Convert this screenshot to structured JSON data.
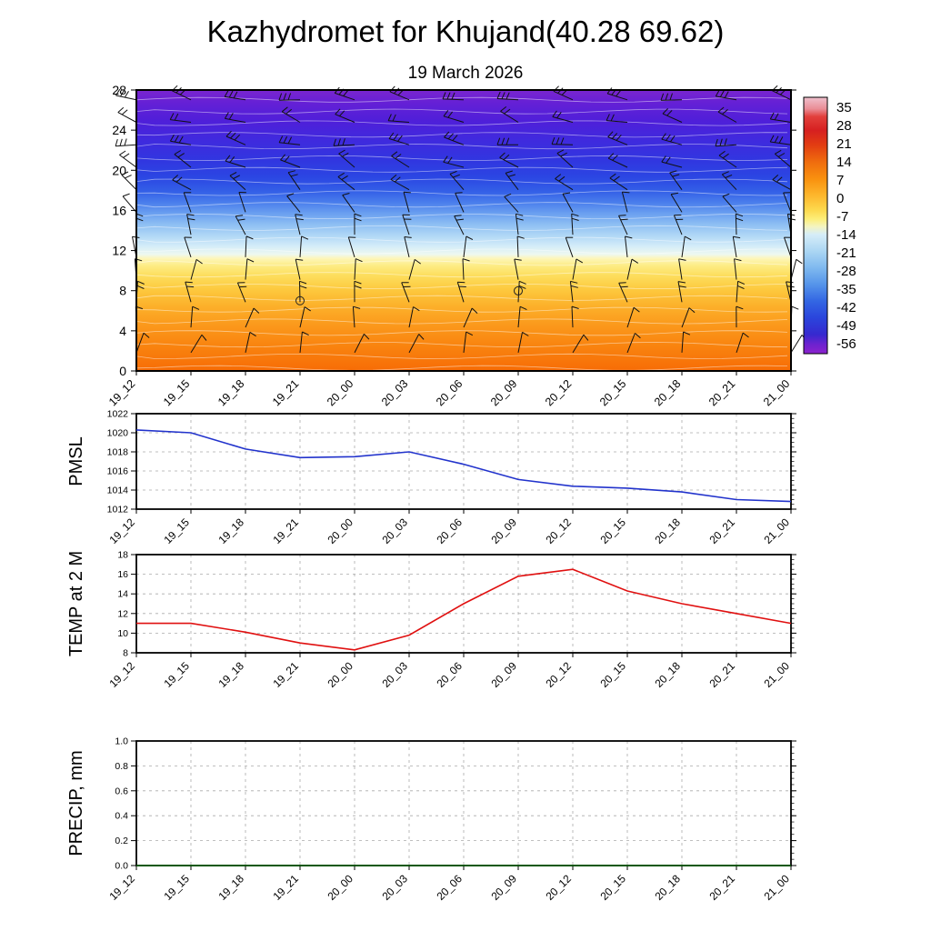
{
  "page": {
    "title": "Kazhydromet for Khujand(40.28 69.62)",
    "subtitle": "19 March 2026"
  },
  "time_labels": [
    "19_12",
    "19_15",
    "19_18",
    "19_21",
    "20_00",
    "20_03",
    "20_06",
    "20_09",
    "20_12",
    "20_15",
    "20_18",
    "20_21",
    "21_00"
  ],
  "chart_data": [
    {
      "id": "cross_section",
      "name": "upper-air time-height cross section",
      "type": "heatmap",
      "x": [
        "19_12",
        "19_15",
        "19_18",
        "19_21",
        "20_00",
        "20_03",
        "20_06",
        "20_09",
        "20_12",
        "20_15",
        "20_18",
        "20_21",
        "21_00"
      ],
      "ylim": [
        0,
        28
      ],
      "yticks": [
        0,
        4,
        8,
        12,
        16,
        20,
        24,
        28
      ],
      "description": "Temperature shading with wind barbs; warm (orange) below ~11, sharp transition to cold (blue/purple) aloft; two calm circles near 8 at 19_21 and 20_09",
      "colorbar": {
        "ticks": [
          35,
          28,
          21,
          14,
          7,
          0,
          -7,
          -14,
          -21,
          -28,
          -35,
          -42,
          -49,
          -56
        ]
      },
      "style": {
        "gradient": [
          [
            0.0,
            "#7a25cf"
          ],
          [
            0.05,
            "#6320d6"
          ],
          [
            0.11,
            "#4f1fd9"
          ],
          [
            0.18,
            "#3f2ade"
          ],
          [
            0.25,
            "#3136e0"
          ],
          [
            0.31,
            "#2b46e3"
          ],
          [
            0.36,
            "#335fe7"
          ],
          [
            0.4,
            "#4a7eec"
          ],
          [
            0.44,
            "#6ba0f0"
          ],
          [
            0.48,
            "#8fc0f3"
          ],
          [
            0.52,
            "#b2d8f6"
          ],
          [
            0.555,
            "#d3ecf9"
          ],
          [
            0.585,
            "#eef8f0"
          ],
          [
            0.6,
            "#fdf6b8"
          ],
          [
            0.625,
            "#fdec85"
          ],
          [
            0.66,
            "#fdde5d"
          ],
          [
            0.71,
            "#fdc93e"
          ],
          [
            0.77,
            "#fcb02a"
          ],
          [
            0.84,
            "#fb981b"
          ],
          [
            0.91,
            "#f9840f"
          ],
          [
            1.0,
            "#f76c06"
          ]
        ],
        "colorbar_gradient": [
          [
            0.0,
            "#efc0cd"
          ],
          [
            0.045,
            "#ea8d96"
          ],
          [
            0.075,
            "#e2403c"
          ],
          [
            0.13,
            "#d62020"
          ],
          [
            0.185,
            "#e23c12"
          ],
          [
            0.25,
            "#ef6b0e"
          ],
          [
            0.32,
            "#f9920f"
          ],
          [
            0.38,
            "#fdb52b"
          ],
          [
            0.44,
            "#fdd94e"
          ],
          [
            0.475,
            "#fdee79"
          ],
          [
            0.505,
            "#f3f4c2"
          ],
          [
            0.535,
            "#d6edf8"
          ],
          [
            0.6,
            "#abd6f3"
          ],
          [
            0.665,
            "#7fb9ef"
          ],
          [
            0.73,
            "#5594ea"
          ],
          [
            0.795,
            "#3366e3"
          ],
          [
            0.86,
            "#2a45dc"
          ],
          [
            0.925,
            "#3629cf"
          ],
          [
            0.965,
            "#6e22cf"
          ],
          [
            1.0,
            "#8d23cd"
          ]
        ],
        "barb_rows": [
          [
            0.035,
            -168,
            3
          ],
          [
            0.115,
            -162,
            2
          ],
          [
            0.195,
            -170,
            3
          ],
          [
            0.275,
            -152,
            2
          ],
          [
            0.355,
            -138,
            2
          ],
          [
            0.435,
            -118,
            1
          ],
          [
            0.515,
            -104,
            2
          ],
          [
            0.595,
            -96,
            1
          ],
          [
            0.675,
            -88,
            1
          ],
          [
            0.755,
            -100,
            2
          ],
          [
            0.845,
            -80,
            1
          ],
          [
            0.935,
            -72,
            1
          ]
        ],
        "calm_markers": [
          [
            3,
            0.75
          ],
          [
            7,
            0.715
          ]
        ]
      }
    },
    {
      "id": "pmsl",
      "name": "PMSL",
      "type": "line",
      "ylabel": "PMSL",
      "color": "#2233cc",
      "ylim": [
        1012,
        1022
      ],
      "yticks": [
        1012,
        1014,
        1016,
        1018,
        1020,
        1022
      ],
      "x": [
        "19_12",
        "19_15",
        "19_18",
        "19_21",
        "20_00",
        "20_03",
        "20_06",
        "20_09",
        "20_12",
        "20_15",
        "20_18",
        "20_21",
        "21_00"
      ],
      "values": [
        1020.3,
        1020.0,
        1018.3,
        1017.4,
        1017.5,
        1018.0,
        1016.7,
        1015.1,
        1014.4,
        1014.2,
        1013.8,
        1013.0,
        1012.8
      ]
    },
    {
      "id": "temp2m",
      "name": "TEMP at 2 M",
      "type": "line",
      "ylabel": "TEMP at 2 M",
      "color": "#e01010",
      "ylim": [
        8,
        18
      ],
      "yticks": [
        8,
        10,
        12,
        14,
        16,
        18
      ],
      "x": [
        "19_12",
        "19_15",
        "19_18",
        "19_21",
        "20_00",
        "20_03",
        "20_06",
        "20_09",
        "20_12",
        "20_15",
        "20_18",
        "20_21",
        "21_00"
      ],
      "values": [
        11.0,
        11.0,
        10.1,
        9.0,
        8.3,
        9.8,
        13.0,
        15.8,
        16.5,
        14.3,
        13.0,
        12.0,
        11.0
      ]
    },
    {
      "id": "precip",
      "name": "PRECIP, mm",
      "type": "line",
      "ylabel": "PRECIP, mm",
      "color": "#006400",
      "ylim": [
        0.0,
        1.0
      ],
      "yticks": [
        0.0,
        0.2,
        0.4,
        0.6,
        0.8,
        1.0
      ],
      "ytick_labels": [
        "0.0",
        "0.2",
        "0.4",
        "0.6",
        "0.8",
        "1.0"
      ],
      "x": [
        "19_12",
        "19_15",
        "19_18",
        "19_21",
        "20_00",
        "20_03",
        "20_06",
        "20_09",
        "20_12",
        "20_15",
        "20_18",
        "20_21",
        "21_00"
      ],
      "values": [
        0,
        0,
        0,
        0,
        0,
        0,
        0,
        0,
        0,
        0,
        0,
        0,
        0
      ]
    }
  ]
}
